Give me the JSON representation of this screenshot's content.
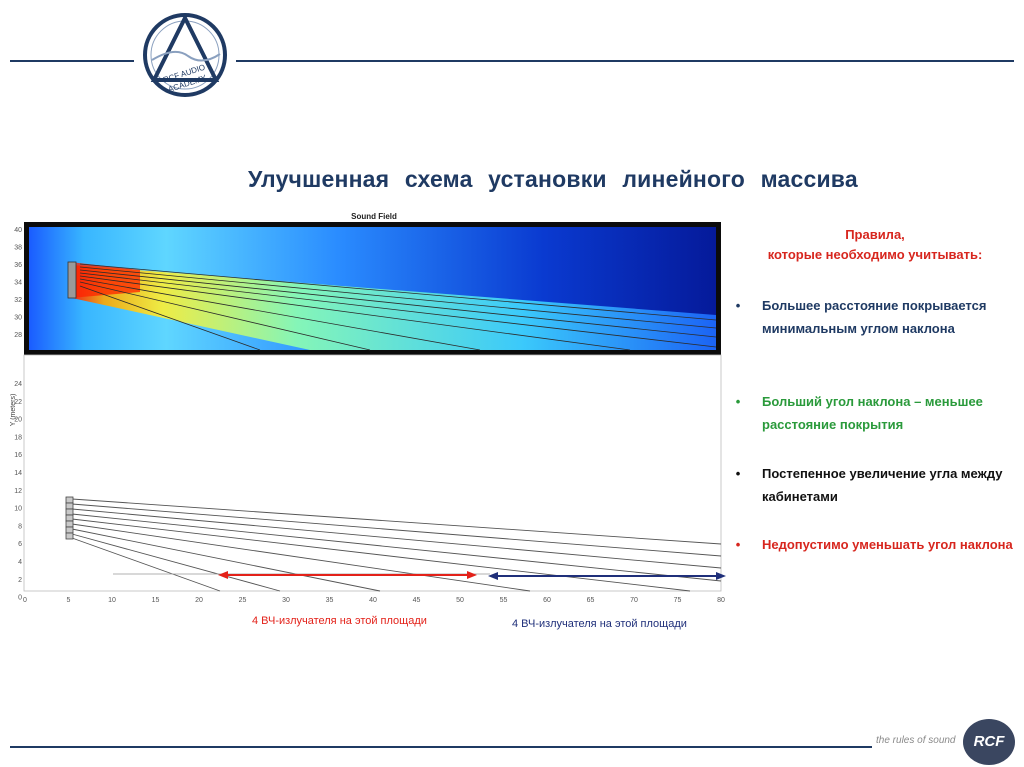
{
  "header": {
    "logo_text_top": "RCF AUDIO",
    "logo_text_bottom": "ACADEMY"
  },
  "slide": {
    "title": "Улучшенная  схема  установки  линейного  массива"
  },
  "figure": {
    "chart_title": "Sound Field",
    "y_axis_label": "Y (meters)",
    "y_ticks_upper": [
      "40",
      "38",
      "36",
      "34",
      "32",
      "30",
      "28"
    ],
    "y_ticks_lower": [
      "24",
      "22",
      "20",
      "18",
      "16",
      "14",
      "12",
      "10",
      "8",
      "6",
      "4",
      "2",
      "0"
    ],
    "x_ticks": [
      "0",
      "5",
      "10",
      "15",
      "20",
      "25",
      "30",
      "35",
      "40",
      "45",
      "50",
      "55",
      "60",
      "65",
      "70",
      "75",
      "80"
    ],
    "captions": {
      "red": "4 ВЧ-излучателя на этой площади",
      "blue": "4 ВЧ-излучателя на этой площади"
    },
    "colors": {
      "red_arrow": "#e32119",
      "blue_arrow": "#1f2f7a"
    }
  },
  "rules": {
    "heading_line1": "Правила,",
    "heading_line2": "которые необходимо учитывать:",
    "items": [
      {
        "text": "Большее расстояние покрывается минимальным углом наклона",
        "color": "#1f3a63"
      },
      {
        "text": "Больший угол наклона – меньшее расстояние покрытия",
        "color": "#2a9a3b"
      },
      {
        "text": "Постепенное увеличение угла между кабинетами",
        "color": "#111111"
      },
      {
        "text": "Недопустимо уменьшать угол наклона",
        "color": "#d7261e"
      }
    ]
  },
  "footer": {
    "slogan": "the rules of sound",
    "brand": "RCF"
  }
}
